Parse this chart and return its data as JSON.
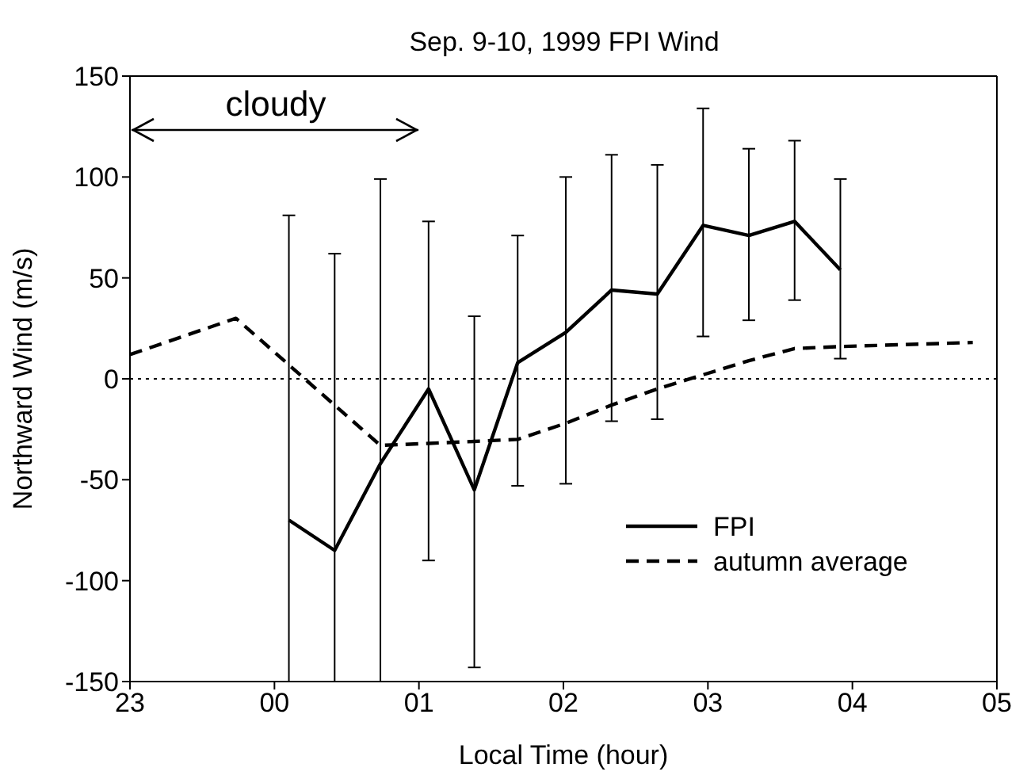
{
  "chart_data": {
    "type": "line",
    "title": "Sep. 9-10, 1999  FPI Wind",
    "xlabel": "Local Time (hour)",
    "ylabel": "Northward Wind (m/s)",
    "annotations": [
      "cloudy"
    ],
    "xlim": [
      "1999-09-09T23:00",
      "1999-09-10T05:00"
    ],
    "xticks": [
      {
        "value": "1999-09-09T23:00",
        "label": "23"
      },
      {
        "value": "1999-09-10T00:00",
        "label": "00"
      },
      {
        "value": "1999-09-10T01:00",
        "label": "01"
      },
      {
        "value": "1999-09-10T02:00",
        "label": "02"
      },
      {
        "value": "1999-09-10T03:00",
        "label": "03"
      },
      {
        "value": "1999-09-10T04:00",
        "label": "04"
      },
      {
        "value": "1999-09-10T05:00",
        "label": "05"
      }
    ],
    "ylim": [
      -150,
      150
    ],
    "yticks": [
      -150,
      -100,
      -50,
      0,
      50,
      100,
      150
    ],
    "series": [
      {
        "name": "FPI",
        "color": "#000000",
        "line_style": "solid",
        "x": [
          "1999-09-10T00:06",
          "1999-09-10T00:25",
          "1999-09-10T00:44",
          "1999-09-10T01:04",
          "1999-09-10T01:23",
          "1999-09-10T01:41",
          "1999-09-10T02:01",
          "1999-09-10T02:20",
          "1999-09-10T02:39",
          "1999-09-10T02:58",
          "1999-09-10T03:17",
          "1999-09-10T03:36",
          "1999-09-10T03:55"
        ],
        "values": [
          -70,
          -85,
          -42,
          -5,
          -55,
          8,
          23,
          44,
          42,
          76,
          71,
          78,
          54
        ],
        "errors": [
          [
            -150,
            81
          ],
          [
            -150,
            62
          ],
          [
            -150,
            99
          ],
          [
            -90,
            78
          ],
          [
            -143,
            31
          ],
          [
            -53,
            71
          ],
          [
            -52,
            100
          ],
          [
            -21,
            111
          ],
          [
            -20,
            106
          ],
          [
            21,
            134
          ],
          [
            29,
            114
          ],
          [
            39,
            118
          ],
          [
            10,
            99
          ]
        ]
      },
      {
        "name": "autumn average",
        "color": "#000000",
        "line_style": "dashed",
        "x": [
          "1999-09-09T23:00",
          "1999-09-09T23:44",
          "1999-09-10T00:44",
          "1999-09-10T01:04",
          "1999-09-10T01:23",
          "1999-09-10T01:41",
          "1999-09-10T02:01",
          "1999-09-10T02:20",
          "1999-09-10T02:39",
          "1999-09-10T02:58",
          "1999-09-10T03:17",
          "1999-09-10T03:36",
          "1999-09-10T03:55",
          "1999-09-10T04:50"
        ],
        "values": [
          12,
          30,
          -33,
          -32,
          -31,
          -30,
          -22,
          -13,
          -5,
          2,
          9,
          15,
          16,
          18
        ]
      }
    ],
    "ref_lines": [
      {
        "axis": "y",
        "value": 0,
        "line_style": "dotted"
      }
    ],
    "grid": false,
    "legend": "bottom right",
    "marker": "none"
  }
}
